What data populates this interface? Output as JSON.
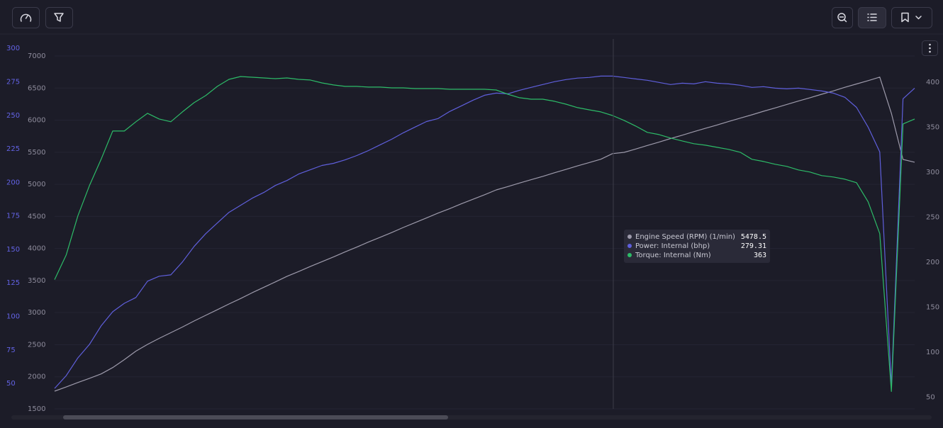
{
  "chart_data": {
    "type": "line",
    "grid": true,
    "ylim": [
      1500,
      7265
    ],
    "yticks": [
      1500,
      2000,
      2500,
      3000,
      3500,
      4000,
      4500,
      5000,
      5500,
      6000,
      6500,
      7000
    ],
    "y2lim": [
      31,
      307
    ],
    "y2ticks": [
      50,
      75,
      100,
      125,
      150,
      175,
      200,
      225,
      250,
      275,
      300
    ],
    "y3lim": [
      37,
      448
    ],
    "y3ticks": [
      50,
      100,
      150,
      200,
      250,
      300,
      350,
      400
    ],
    "series": [
      {
        "name": "Engine Speed (RPM) (1/min)",
        "color": "#9d9aab",
        "axis": "y",
        "values": [
          1776,
          1841,
          1911,
          1976,
          2045,
          2144,
          2268,
          2400,
          2505,
          2599,
          2687,
          2776,
          2869,
          2958,
          3045,
          3135,
          3220,
          3310,
          3395,
          3479,
          3566,
          3640,
          3719,
          3794,
          3868,
          3947,
          4021,
          4100,
          4174,
          4248,
          4327,
          4401,
          4475,
          4551,
          4621,
          4696,
          4767,
          4838,
          4913,
          4965,
          5020,
          5072,
          5124,
          5180,
          5232,
          5287,
          5339,
          5391,
          5478.5,
          5498,
          5550,
          5605,
          5657,
          5713,
          5765,
          5820,
          5872,
          5924,
          5979,
          6031,
          6083,
          6138,
          6190,
          6245,
          6297,
          6349,
          6404,
          6456,
          6512,
          6564,
          6616,
          6671,
          6106,
          5388,
          5344
        ]
      },
      {
        "name": "Power: Internal (bhp)",
        "color": "#5f5fdc",
        "axis": "y2",
        "values": [
          46.3,
          55.8,
          69.0,
          79.1,
          92.9,
          103.5,
          109.8,
          114.1,
          126.3,
          130.0,
          131.0,
          140.6,
          152.2,
          161.7,
          169.7,
          177.6,
          182.9,
          188.2,
          192.5,
          197.7,
          201.4,
          206.2,
          209.4,
          212.6,
          214.2,
          216.8,
          220.0,
          223.7,
          228.0,
          232.2,
          237.0,
          241.2,
          245.4,
          247.6,
          252.9,
          257.1,
          261.3,
          265.0,
          266.6,
          266.1,
          268.7,
          270.9,
          273.0,
          275.1,
          276.7,
          277.8,
          278.3,
          279.3,
          279.31,
          278.3,
          277.2,
          276.2,
          274.6,
          273.0,
          274.0,
          273.5,
          275.1,
          274.0,
          273.5,
          272.5,
          270.9,
          271.4,
          270.3,
          269.8,
          270.3,
          269.3,
          268.2,
          266.6,
          263.5,
          256.0,
          241.2,
          222.7,
          47.9,
          262.4,
          270.3
        ]
      },
      {
        "name": "Torque: Internal (Nm)",
        "color": "#2dbb68",
        "axis": "y3",
        "values": [
          180.6,
          208.1,
          251.4,
          285.2,
          314.3,
          345.7,
          345.7,
          356.0,
          365.4,
          359.1,
          356.0,
          367.0,
          377.2,
          385.1,
          395.3,
          403.1,
          406.3,
          405.5,
          404.7,
          403.9,
          404.7,
          403.1,
          402.4,
          399.2,
          396.9,
          395.3,
          395.3,
          394.5,
          394.5,
          393.7,
          393.7,
          392.9,
          392.9,
          392.9,
          392.1,
          392.1,
          392.1,
          392.1,
          391.3,
          386.6,
          382.7,
          381.1,
          381.1,
          378.8,
          375.6,
          371.7,
          369.3,
          367.0,
          363,
          357.5,
          351.2,
          344.2,
          341.8,
          337.9,
          334.7,
          331.6,
          330.0,
          327.6,
          325.3,
          322.1,
          314.3,
          311.9,
          308.8,
          306.4,
          302.5,
          300.1,
          296.2,
          294.6,
          292.2,
          288.3,
          267.1,
          231.7,
          56.3,
          353.6,
          359.1
        ]
      }
    ],
    "tooltip": {
      "values": [
        5478.5,
        279.31,
        363
      ]
    }
  }
}
